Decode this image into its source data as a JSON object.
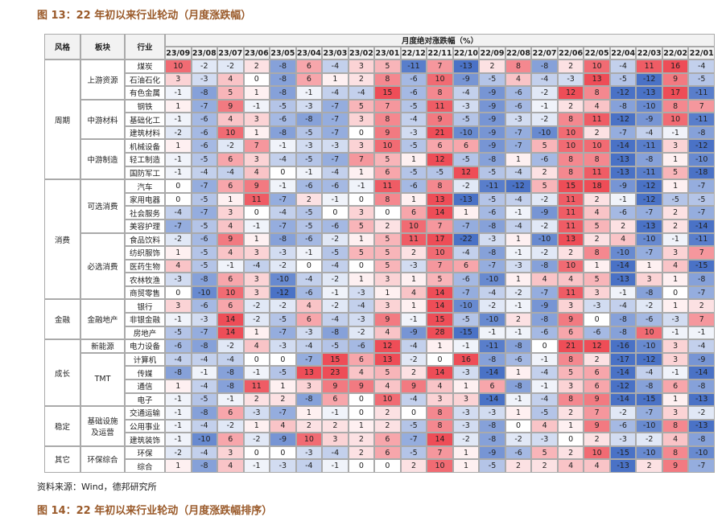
{
  "title": "图 13：22 年初以来行业轮动（月度涨跌幅）",
  "table": {
    "col_headers": [
      "风格",
      "板块",
      "行业"
    ],
    "group_header": "月度绝对涨跌幅（%）",
    "months": [
      "23/09",
      "23/08",
      "23/07",
      "23/06",
      "23/05",
      "23/04",
      "23/03",
      "23/02",
      "23/01",
      "22/12",
      "22/11",
      "22/10",
      "22/09",
      "22/08",
      "22/07",
      "22/06",
      "22/05",
      "22/04",
      "22/03",
      "22/02",
      "22/01"
    ],
    "color_scale": {
      "positive": "#ee4d57",
      "negative": "#4a72c6",
      "neutral": "#ffffff",
      "saturation": 12
    },
    "styles": [
      {
        "name": "周期",
        "sectors": [
          {
            "name": "上游资源",
            "industries": [
              {
                "name": "煤炭",
                "values": [
                  10,
                  -2,
                  -2,
                  2,
                  -8,
                  6,
                  -4,
                  3,
                  5,
                  -11,
                  7,
                  -13,
                  2,
                  8,
                  -8,
                  2,
                  10,
                  -4,
                  11,
                  16,
                  -4
                ]
              },
              {
                "name": "石油石化",
                "values": [
                  3,
                  -3,
                  4,
                  0,
                  -8,
                  6,
                  1,
                  2,
                  8,
                  -6,
                  10,
                  -9,
                  -5,
                  4,
                  -4,
                  -3,
                  13,
                  -5,
                  -12,
                  9,
                  -5
                ]
              },
              {
                "name": "有色金属",
                "values": [
                  -1,
                  -8,
                  5,
                  1,
                  -8,
                  -1,
                  -4,
                  -4,
                  15,
                  -6,
                  8,
                  -4,
                  -9,
                  -6,
                  -2,
                  12,
                  8,
                  -12,
                  -13,
                  17,
                  -11
                ]
              }
            ]
          },
          {
            "name": "中游材料",
            "industries": [
              {
                "name": "钢铁",
                "values": [
                  1,
                  -7,
                  9,
                  -1,
                  -5,
                  -3,
                  -7,
                  5,
                  7,
                  -5,
                  11,
                  -3,
                  -9,
                  -6,
                  -1,
                  2,
                  4,
                  -8,
                  -10,
                  8,
                  7
                ]
              },
              {
                "name": "基础化工",
                "values": [
                  -1,
                  -6,
                  4,
                  3,
                  -6,
                  -8,
                  -7,
                  3,
                  8,
                  -4,
                  9,
                  -5,
                  -9,
                  -3,
                  -2,
                  8,
                  11,
                  -12,
                  -9,
                  10,
                  -11
                ]
              },
              {
                "name": "建筑材料",
                "values": [
                  -2,
                  -6,
                  10,
                  1,
                  -8,
                  -5,
                  -7,
                  0,
                  9,
                  -3,
                  21,
                  -10,
                  -9,
                  -7,
                  -10,
                  10,
                  2,
                  -7,
                  -4,
                  -1,
                  -8
                ]
              }
            ]
          },
          {
            "name": "中游制造",
            "industries": [
              {
                "name": "机械设备",
                "values": [
                  1,
                  -6,
                  -2,
                  7,
                  -1,
                  -3,
                  -3,
                  3,
                  10,
                  -5,
                  6,
                  6,
                  -9,
                  -7,
                  5,
                  10,
                  10,
                  -14,
                  -11,
                  3,
                  -12
                ]
              },
              {
                "name": "轻工制造",
                "values": [
                  -1,
                  -5,
                  6,
                  3,
                  -4,
                  -5,
                  -7,
                  7,
                  5,
                  1,
                  12,
                  -5,
                  -8,
                  1,
                  -6,
                  8,
                  8,
                  -13,
                  -8,
                  1,
                  -10
                ]
              },
              {
                "name": "国防军工",
                "values": [
                  -1,
                  -4,
                  -4,
                  4,
                  0,
                  -1,
                  -4,
                  1,
                  6,
                  -5,
                  -5,
                  12,
                  -5,
                  -4,
                  2,
                  8,
                  11,
                  -13,
                  -11,
                  5,
                  -18
                ]
              }
            ]
          }
        ]
      },
      {
        "name": "消费",
        "sectors": [
          {
            "name": "可选消费",
            "industries": [
              {
                "name": "汽车",
                "values": [
                  0,
                  -7,
                  6,
                  9,
                  -1,
                  -6,
                  -6,
                  -1,
                  11,
                  -6,
                  8,
                  -2,
                  -11,
                  -12,
                  5,
                  15,
                  18,
                  -9,
                  -12,
                  1,
                  -7
                ]
              },
              {
                "name": "家用电器",
                "values": [
                  0,
                  -5,
                  1,
                  11,
                  -7,
                  2,
                  -1,
                  0,
                  8,
                  1,
                  13,
                  -13,
                  -5,
                  -4,
                  -2,
                  11,
                  2,
                  -1,
                  -12,
                  -5,
                  -5
                ]
              },
              {
                "name": "社会服务",
                "values": [
                  -4,
                  -7,
                  3,
                  0,
                  -4,
                  -5,
                  0,
                  3,
                  0,
                  6,
                  14,
                  1,
                  -6,
                  -1,
                  -9,
                  11,
                  4,
                  -6,
                  -7,
                  2,
                  -7
                ]
              },
              {
                "name": "美容护理",
                "values": [
                  -7,
                  -5,
                  4,
                  -1,
                  -7,
                  -5,
                  -6,
                  5,
                  2,
                  10,
                  7,
                  -7,
                  -8,
                  -4,
                  -2,
                  11,
                  5,
                  2,
                  -13,
                  2,
                  -14
                ]
              }
            ]
          },
          {
            "name": "必选消费",
            "industries": [
              {
                "name": "食品饮料",
                "values": [
                  -2,
                  -6,
                  9,
                  1,
                  -8,
                  -6,
                  -2,
                  1,
                  5,
                  11,
                  17,
                  -22,
                  -3,
                  1,
                  -10,
                  13,
                  2,
                  4,
                  -10,
                  -1,
                  -11
                ]
              },
              {
                "name": "纺织服饰",
                "values": [
                  1,
                  -5,
                  4,
                  3,
                  -3,
                  -1,
                  -5,
                  5,
                  5,
                  2,
                  10,
                  -4,
                  -8,
                  -1,
                  -2,
                  2,
                  8,
                  -10,
                  -7,
                  3,
                  7
                ]
              },
              {
                "name": "医药生物",
                "values": [
                  4,
                  -5,
                  -1,
                  -4,
                  -2,
                  0,
                  -4,
                  0,
                  5,
                  -3,
                  7,
                  6,
                  -7,
                  -3,
                  -8,
                  10,
                  1,
                  -14,
                  1,
                  4,
                  -15
                ]
              },
              {
                "name": "农林牧渔",
                "values": [
                  -3,
                  -8,
                  6,
                  3,
                  -10,
                  -4,
                  -2,
                  1,
                  3,
                  1,
                  5,
                  -6,
                  -10,
                  1,
                  4,
                  4,
                  5,
                  -13,
                  3,
                  1,
                  -8
                ]
              },
              {
                "name": "商贸零售",
                "values": [
                  0,
                  -10,
                  10,
                  3,
                  -12,
                  -6,
                  -1,
                  -3,
                  1,
                  4,
                  14,
                  -7,
                  -4,
                  -2,
                  -7,
                  11,
                  3,
                  -1,
                  -8,
                  0,
                  -7
                ]
              }
            ]
          }
        ]
      },
      {
        "name": "金融",
        "sectors": [
          {
            "name": "金融地产",
            "industries": [
              {
                "name": "银行",
                "values": [
                  3,
                  -6,
                  6,
                  -2,
                  -2,
                  4,
                  -2,
                  -4,
                  3,
                  1,
                  14,
                  -10,
                  -2,
                  -1,
                  -9,
                  3,
                  -3,
                  -4,
                  -2,
                  1,
                  2
                ]
              },
              {
                "name": "非银金融",
                "values": [
                  -1,
                  -3,
                  14,
                  -2,
                  -5,
                  6,
                  -4,
                  -3,
                  9,
                  -1,
                  15,
                  -5,
                  -10,
                  2,
                  -8,
                  9,
                  0,
                  -8,
                  -6,
                  -3,
                  7
                ]
              },
              {
                "name": "房地产",
                "values": [
                  -5,
                  -7,
                  14,
                  1,
                  -7,
                  -3,
                  -8,
                  -2,
                  4,
                  -9,
                  28,
                  -15,
                  -1,
                  -1,
                  -6,
                  6,
                  -6,
                  -8,
                  10,
                  -1,
                  -1
                ]
              }
            ]
          }
        ]
      },
      {
        "name": "成长",
        "sectors": [
          {
            "name": "新能源",
            "industries": [
              {
                "name": "电力设备",
                "values": [
                  -6,
                  -8,
                  -2,
                  4,
                  -3,
                  -4,
                  -5,
                  -6,
                  12,
                  -4,
                  1,
                  -1,
                  -11,
                  -8,
                  0,
                  21,
                  12,
                  -16,
                  -10,
                  3,
                  -4
                ]
              }
            ]
          },
          {
            "name": "TMT",
            "industries": [
              {
                "name": "计算机",
                "values": [
                  -4,
                  -4,
                  -4,
                  0,
                  0,
                  -7,
                  15,
                  6,
                  13,
                  -2,
                  0,
                  16,
                  -8,
                  -6,
                  -1,
                  8,
                  2,
                  -17,
                  -12,
                  3,
                  -9
                ]
              },
              {
                "name": "传媒",
                "values": [
                  -8,
                  -1,
                  -8,
                  -1,
                  -5,
                  13,
                  23,
                  4,
                  5,
                  2,
                  14,
                  -3,
                  -14,
                  1,
                  -4,
                  5,
                  6,
                  -14,
                  -4,
                  -1,
                  -14
                ]
              },
              {
                "name": "通信",
                "values": [
                  1,
                  -4,
                  -8,
                  11,
                  1,
                  3,
                  9,
                  9,
                  4,
                  9,
                  4,
                  1,
                  6,
                  -8,
                  -1,
                  3,
                  6,
                  -12,
                  -8,
                  6,
                  -8
                ]
              },
              {
                "name": "电子",
                "values": [
                  -1,
                  -5,
                  -1,
                  2,
                  2,
                  -8,
                  6,
                  0,
                  10,
                  -4,
                  3,
                  3,
                  -14,
                  -1,
                  -4,
                  8,
                  9,
                  -14,
                  -15,
                  1,
                  -13
                ]
              }
            ]
          }
        ]
      },
      {
        "name": "稳定",
        "sectors": [
          {
            "name": "基础设施及运营",
            "industries": [
              {
                "name": "交通运输",
                "values": [
                  -1,
                  -8,
                  6,
                  -3,
                  -7,
                  1,
                  -1,
                  0,
                  2,
                  0,
                  8,
                  -3,
                  -3,
                  1,
                  -5,
                  2,
                  7,
                  -2,
                  -7,
                  3,
                  -2
                ]
              },
              {
                "name": "公用事业",
                "values": [
                  -1,
                  -4,
                  -2,
                  1,
                  4,
                  2,
                  2,
                  1,
                  2,
                  -5,
                  8,
                  -3,
                  -8,
                  0,
                  4,
                  1,
                  9,
                  -6,
                  -10,
                  8,
                  -13
                ]
              },
              {
                "name": "建筑装饰",
                "values": [
                  -1,
                  -10,
                  6,
                  -2,
                  -9,
                  10,
                  3,
                  2,
                  6,
                  -7,
                  14,
                  -2,
                  -8,
                  -2,
                  -3,
                  0,
                  2,
                  -3,
                  -2,
                  4,
                  -8
                ]
              }
            ]
          }
        ]
      },
      {
        "name": "其它",
        "sectors": [
          {
            "name": "环保综合",
            "industries": [
              {
                "name": "环保",
                "values": [
                  -2,
                  -4,
                  3,
                  0,
                  0,
                  -3,
                  -4,
                  2,
                  6,
                  -5,
                  7,
                  1,
                  -9,
                  -6,
                  5,
                  2,
                  10,
                  -15,
                  -10,
                  8,
                  -10
                ]
              },
              {
                "name": "综合",
                "values": [
                  1,
                  -8,
                  4,
                  -1,
                  -3,
                  -4,
                  -1,
                  0,
                  0,
                  2,
                  10,
                  1,
                  -5,
                  2,
                  2,
                  4,
                  4,
                  -13,
                  2,
                  9,
                  -7
                ]
              }
            ]
          }
        ]
      }
    ]
  },
  "source": "资料来源：Wind，德邦研究所",
  "next_title": "图 14：22 年初以来行业轮动（月度涨跌幅排序）"
}
